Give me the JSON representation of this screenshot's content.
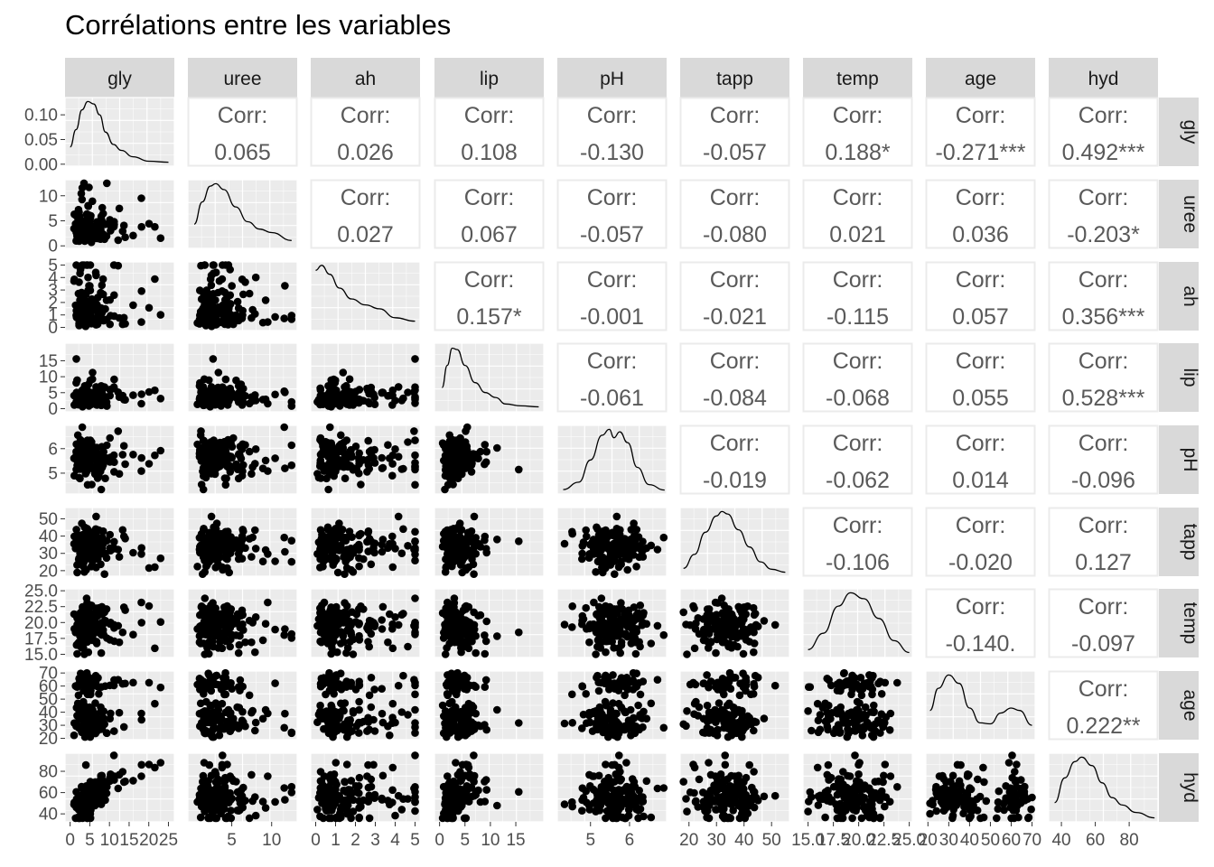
{
  "title": "Corrélations entre les variables",
  "chart_data": {
    "type": "scatter-matrix",
    "title": "Corrélations entre les variables",
    "grid": true,
    "variables": [
      "gly",
      "uree",
      "ah",
      "lip",
      "pH",
      "tapp",
      "temp",
      "age",
      "hyd"
    ],
    "x_axis_ticks": [
      {
        "var": "gly",
        "ticks": [
          "0",
          "5",
          "10",
          "15",
          "20",
          "25"
        ]
      },
      {
        "var": "uree",
        "ticks": [
          "5",
          "10"
        ]
      },
      {
        "var": "ah",
        "ticks": [
          "0",
          "1",
          "2",
          "3",
          "4",
          "5"
        ]
      },
      {
        "var": "lip",
        "ticks": [
          "0",
          "5",
          "10",
          "15"
        ]
      },
      {
        "var": "pH",
        "ticks": [
          "5",
          "6"
        ]
      },
      {
        "var": "tapp",
        "ticks": [
          "20",
          "30",
          "40",
          "50"
        ]
      },
      {
        "var": "temp",
        "ticks": [
          "15.0",
          "17.5",
          "20.0",
          "22.5",
          "25.0"
        ]
      },
      {
        "var": "age",
        "ticks": [
          "20",
          "30",
          "40",
          "50",
          "60",
          "70"
        ]
      },
      {
        "var": "hyd",
        "ticks": [
          "40",
          "60",
          "80"
        ]
      }
    ],
    "y_axis_ticks": [
      {
        "var": "gly",
        "ticks": [
          "0.00",
          "0.05",
          "0.10"
        ]
      },
      {
        "var": "uree",
        "ticks": [
          "0",
          "5",
          "10"
        ]
      },
      {
        "var": "ah",
        "ticks": [
          "0",
          "1",
          "2",
          "3",
          "4",
          "5"
        ]
      },
      {
        "var": "lip",
        "ticks": [
          "0",
          "5",
          "10",
          "15"
        ]
      },
      {
        "var": "pH",
        "ticks": [
          "5",
          "6"
        ]
      },
      {
        "var": "tapp",
        "ticks": [
          "20",
          "30",
          "40",
          "50"
        ]
      },
      {
        "var": "temp",
        "ticks": [
          "15.0",
          "17.5",
          "20.0",
          "22.5",
          "25.0"
        ]
      },
      {
        "var": "age",
        "ticks": [
          "20",
          "30",
          "40",
          "50",
          "60",
          "70"
        ]
      },
      {
        "var": "hyd",
        "ticks": [
          "40",
          "60",
          "80"
        ]
      }
    ],
    "corr_label": "Corr:",
    "correlations": [
      {
        "row": "gly",
        "col": "uree",
        "text": "0.065"
      },
      {
        "row": "gly",
        "col": "ah",
        "text": "0.026"
      },
      {
        "row": "gly",
        "col": "lip",
        "text": "0.108"
      },
      {
        "row": "gly",
        "col": "pH",
        "text": "-0.130"
      },
      {
        "row": "gly",
        "col": "tapp",
        "text": "-0.057"
      },
      {
        "row": "gly",
        "col": "temp",
        "text": "0.188*"
      },
      {
        "row": "gly",
        "col": "age",
        "text": "-0.271***"
      },
      {
        "row": "gly",
        "col": "hyd",
        "text": "0.492***"
      },
      {
        "row": "uree",
        "col": "ah",
        "text": "0.027"
      },
      {
        "row": "uree",
        "col": "lip",
        "text": "0.067"
      },
      {
        "row": "uree",
        "col": "pH",
        "text": "-0.057"
      },
      {
        "row": "uree",
        "col": "tapp",
        "text": "-0.080"
      },
      {
        "row": "uree",
        "col": "temp",
        "text": "0.021"
      },
      {
        "row": "uree",
        "col": "age",
        "text": "0.036"
      },
      {
        "row": "uree",
        "col": "hyd",
        "text": "-0.203*"
      },
      {
        "row": "ah",
        "col": "lip",
        "text": "0.157*"
      },
      {
        "row": "ah",
        "col": "pH",
        "text": "-0.001"
      },
      {
        "row": "ah",
        "col": "tapp",
        "text": "-0.021"
      },
      {
        "row": "ah",
        "col": "temp",
        "text": "-0.115"
      },
      {
        "row": "ah",
        "col": "age",
        "text": "0.057"
      },
      {
        "row": "ah",
        "col": "hyd",
        "text": "0.356***"
      },
      {
        "row": "lip",
        "col": "pH",
        "text": "-0.061"
      },
      {
        "row": "lip",
        "col": "tapp",
        "text": "-0.084"
      },
      {
        "row": "lip",
        "col": "temp",
        "text": "-0.068"
      },
      {
        "row": "lip",
        "col": "age",
        "text": "0.055"
      },
      {
        "row": "lip",
        "col": "hyd",
        "text": "0.528***"
      },
      {
        "row": "pH",
        "col": "tapp",
        "text": "-0.019"
      },
      {
        "row": "pH",
        "col": "temp",
        "text": "-0.062"
      },
      {
        "row": "pH",
        "col": "age",
        "text": "0.014"
      },
      {
        "row": "pH",
        "col": "hyd",
        "text": "-0.096"
      },
      {
        "row": "tapp",
        "col": "temp",
        "text": "-0.106"
      },
      {
        "row": "tapp",
        "col": "age",
        "text": "-0.020"
      },
      {
        "row": "tapp",
        "col": "hyd",
        "text": "0.127"
      },
      {
        "row": "temp",
        "col": "age",
        "text": "-0.140."
      },
      {
        "row": "temp",
        "col": "hyd",
        "text": "-0.097"
      },
      {
        "row": "age",
        "col": "hyd",
        "text": "0.222**"
      }
    ],
    "colors": {
      "panel_bg": "#ebebeb",
      "grid": "#ffffff",
      "strip_bg": "#d9d9d9",
      "points": "#000000",
      "corr_text": "#595959",
      "axis_text": "#4d4d4d"
    }
  }
}
